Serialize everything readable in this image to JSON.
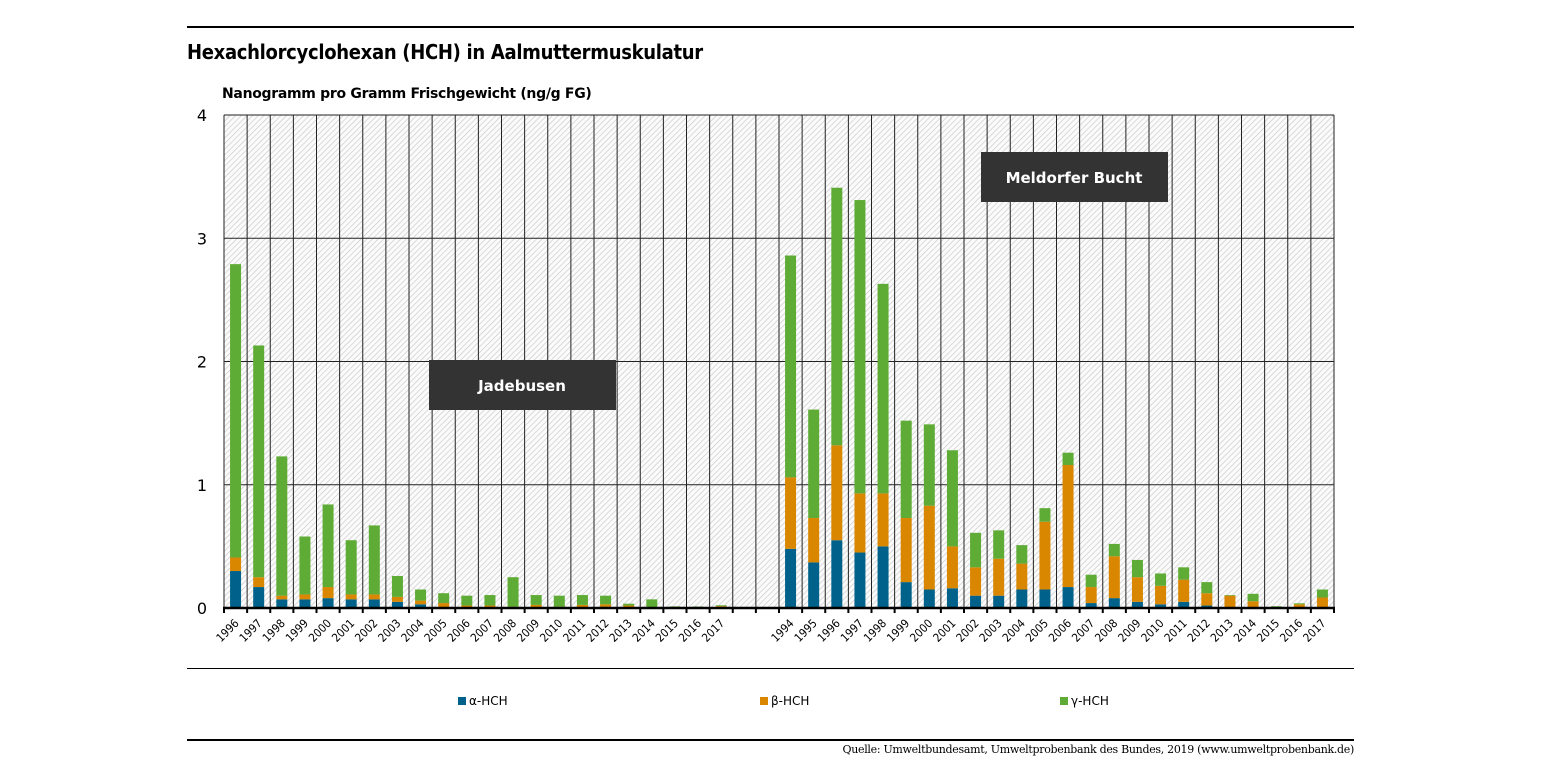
{
  "title": "Hexachlorcyclohexan (HCH) in Aalmuttermuskulatur",
  "source": "Quelle: Umweltbundesamt, Umweltprobenbank des Bundes, 2019 (www.umweltprobenbank.de)",
  "chart_data": {
    "type": "bar",
    "stacked": true,
    "title": "Hexachlorcyclohexan (HCH) in Aalmuttermuskulatur",
    "ylabel": "Nanogramm pro Gramm Frischgewicht (ng/g FG)",
    "ylim": [
      0,
      4
    ],
    "yticks": [
      "0",
      "1",
      "2",
      "3",
      "4"
    ],
    "grid": true,
    "legend_position": "bottom",
    "colors": {
      "alpha": "#00628a",
      "beta": "#d98600",
      "gamma": "#5eab35",
      "annotation_bg": "#333333"
    },
    "series_names": [
      "α-HCH",
      "β-HCH",
      "γ-HCH"
    ],
    "groups": [
      {
        "name": "Jadebusen",
        "categories": [
          "1996",
          "1997",
          "1998",
          "1999",
          "2000",
          "2001",
          "2002",
          "2003",
          "2004",
          "2005",
          "2006",
          "2007",
          "2008",
          "2009",
          "2010",
          "2011",
          "2012",
          "2013",
          "2014",
          "2015",
          "2016",
          "2017"
        ],
        "alpha": [
          0.3,
          0.17,
          0.07,
          0.07,
          0.08,
          0.07,
          0.07,
          0.05,
          0.03,
          0.005,
          0,
          0,
          0,
          0,
          0,
          0,
          0.01,
          0,
          0,
          0,
          0,
          0
        ],
        "beta": [
          0.11,
          0.08,
          0.03,
          0.04,
          0.09,
          0.04,
          0.04,
          0.04,
          0.03,
          0.035,
          0.02,
          0.02,
          0.01,
          0.025,
          0.01,
          0.025,
          0.02,
          0.02,
          0,
          0,
          0,
          0.015
        ],
        "gamma": [
          2.38,
          1.88,
          1.13,
          0.47,
          0.67,
          0.44,
          0.56,
          0.17,
          0.09,
          0.08,
          0.08,
          0.085,
          0.24,
          0.08,
          0.09,
          0.08,
          0.07,
          0.015,
          0.07,
          0.013,
          0.012,
          0.007
        ]
      },
      {
        "name": "Meldorfer Bucht",
        "categories": [
          "1994",
          "1995",
          "1996",
          "1997",
          "1998",
          "1999",
          "2000",
          "2001",
          "2002",
          "2003",
          "2004",
          "2005",
          "2006",
          "2007",
          "2008",
          "2009",
          "2010",
          "2011",
          "2012",
          "2013",
          "2014",
          "2015",
          "2016",
          "2017"
        ],
        "alpha": [
          0.48,
          0.37,
          0.55,
          0.45,
          0.5,
          0.21,
          0.15,
          0.16,
          0.1,
          0.1,
          0.15,
          0.15,
          0.17,
          0.04,
          0.08,
          0.05,
          0.03,
          0.05,
          0.02,
          0.005,
          0,
          0,
          0,
          0
        ],
        "beta": [
          0.58,
          0.36,
          0.77,
          0.48,
          0.43,
          0.52,
          0.68,
          0.34,
          0.23,
          0.3,
          0.21,
          0.55,
          0.99,
          0.13,
          0.34,
          0.2,
          0.15,
          0.18,
          0.1,
          0.095,
          0.055,
          0,
          0.03,
          0.085
        ],
        "gamma": [
          1.8,
          0.88,
          2.09,
          2.38,
          1.7,
          0.79,
          0.66,
          0.78,
          0.28,
          0.23,
          0.15,
          0.11,
          0.1,
          0.1,
          0.1,
          0.14,
          0.1,
          0.1,
          0.09,
          0.005,
          0.06,
          0.014,
          0.008,
          0.065
        ]
      }
    ]
  }
}
